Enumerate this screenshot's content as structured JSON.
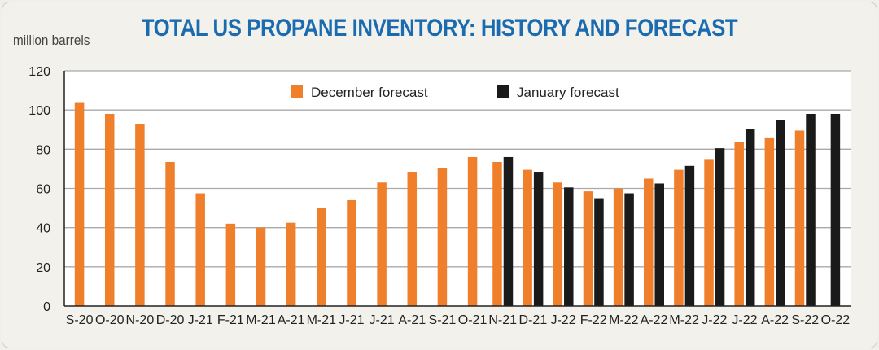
{
  "chart_data": {
    "type": "bar",
    "title": "TOTAL US PROPANE INVENTORY: HISTORY AND FORECAST",
    "ylabel": "million barrels",
    "ylim": [
      0,
      120
    ],
    "yticks": [
      0,
      20,
      40,
      60,
      80,
      100,
      120
    ],
    "grid": true,
    "legend_position": "top-center",
    "categories": [
      "S-20",
      "O-20",
      "N-20",
      "D-20",
      "J-21",
      "F-21",
      "M-21",
      "A-21",
      "M-21",
      "J-21",
      "J-21",
      "A-21",
      "S-21",
      "O-21",
      "N-21",
      "D-21",
      "J-22",
      "F-22",
      "M-22",
      "A-22",
      "M-22",
      "J-22",
      "J-22",
      "A-22",
      "S-22",
      "O-22"
    ],
    "series": [
      {
        "name": "December forecast",
        "color": "#f07f2c",
        "values": [
          104,
          98,
          93,
          73.5,
          57.5,
          42,
          40,
          42.5,
          50,
          54,
          63,
          68.5,
          70.5,
          76,
          73.5,
          69.5,
          63,
          58.5,
          60,
          65,
          69.5,
          75,
          83.5,
          86,
          89.5,
          null
        ]
      },
      {
        "name": "January forecast",
        "color": "#1a1a1a",
        "values": [
          null,
          null,
          null,
          null,
          null,
          null,
          null,
          null,
          null,
          null,
          null,
          null,
          null,
          null,
          76,
          68.5,
          60.5,
          55,
          57.5,
          62.5,
          71.5,
          80.5,
          90.5,
          95,
          98,
          98
        ]
      }
    ]
  }
}
